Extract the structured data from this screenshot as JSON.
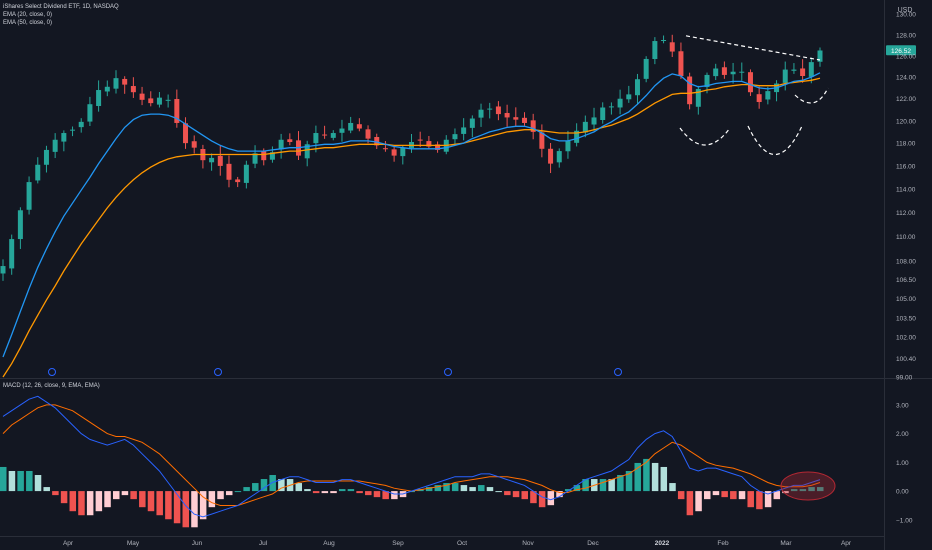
{
  "legend": {
    "symbol": "iShares Select Dividend ETF, 1D, NASDAQ",
    "ema20": "EMA (20, close, 0)",
    "ema50": "EMA (50, close, 0)",
    "macd": "MACD (12, 26, close, 9, EMA, EMA)"
  },
  "currency": "USD",
  "last_price": "126.52",
  "colors": {
    "background": "#131722",
    "up": "#26a69a",
    "down": "#ef5350",
    "ema20": "#2196f3",
    "ema50": "#ff9800",
    "macd_line": "#2962ff",
    "signal_line": "#ff6d00",
    "annotation": "#ffffff",
    "highlight": "#b22833"
  },
  "chart_data": [
    {
      "type": "candlestick",
      "title": "iShares Select Dividend ETF, 1D, NASDAQ",
      "x_tick_labels": [
        "Apr",
        "May",
        "Jun",
        "Jul",
        "Aug",
        "Sep",
        "Oct",
        "Nov",
        "Dec",
        "2022",
        "Feb",
        "Mar",
        "Apr"
      ],
      "y_tick_labels": [
        "130.00",
        "128.00",
        "126.00",
        "124.00",
        "122.00",
        "120.00",
        "118.00",
        "116.00",
        "114.00",
        "112.00",
        "110.00",
        "108.00",
        "106.50",
        "105.00",
        "103.50",
        "102.00",
        "100.40",
        "99.00"
      ],
      "ylim": [
        99,
        130.6
      ],
      "y_scale": "log",
      "grid": false,
      "approximate_closes": [
        107.6,
        109.8,
        112.2,
        114.6,
        116.1,
        117.4,
        118.3,
        118.9,
        119.2,
        119.9,
        121.5,
        122.8,
        123.1,
        123.9,
        123.3,
        122.6,
        121.9,
        121.6,
        122.1,
        121.9,
        119.8,
        118.0,
        117.6,
        116.5,
        116.7,
        116.0,
        114.8,
        114.6,
        116.1,
        117.1,
        116.5,
        117.2,
        118.3,
        118.1,
        116.9,
        117.9,
        118.9,
        118.7,
        118.9,
        119.3,
        119.8,
        119.3,
        118.4,
        117.8,
        117.5,
        116.9,
        117.6,
        118.1,
        118.3,
        117.7,
        117.4,
        118.3,
        118.8,
        119.4,
        120.2,
        121.0,
        121.1,
        120.6,
        120.3,
        120.1,
        119.8,
        119.0,
        117.5,
        116.2,
        117.3,
        118.2,
        119.1,
        119.9,
        120.3,
        121.2,
        121.3,
        122.0,
        122.4,
        123.8,
        125.7,
        127.4,
        127.5,
        126.4,
        124.1,
        121.5,
        122.9,
        124.2,
        124.8,
        124.2,
        124.5,
        124.5,
        122.6,
        121.7,
        122.7,
        123.4,
        124.7,
        124.7,
        124.1,
        125.4,
        126.5
      ],
      "ema20": [
        100.5,
        102.2,
        104.0,
        105.8,
        107.5,
        109.0,
        110.4,
        111.7,
        112.8,
        113.9,
        115.0,
        116.2,
        117.3,
        118.4,
        119.4,
        120.1,
        120.5,
        120.6,
        120.6,
        120.5,
        120.2,
        119.7,
        119.2,
        118.7,
        118.2,
        117.8,
        117.5,
        117.3,
        117.3,
        117.3,
        117.3,
        117.4,
        117.5,
        117.6,
        117.6,
        117.7,
        117.8,
        117.9,
        117.9,
        118.0,
        118.2,
        118.2,
        118.2,
        118.1,
        117.9,
        117.7,
        117.6,
        117.5,
        117.5,
        117.5,
        117.5,
        117.6,
        117.8,
        118.0,
        118.4,
        118.7,
        119.0,
        119.2,
        119.4,
        119.5,
        119.5,
        119.3,
        118.9,
        118.4,
        118.2,
        118.2,
        118.4,
        118.7,
        119.0,
        119.5,
        119.9,
        120.4,
        120.8,
        121.5,
        122.3,
        123.2,
        123.9,
        124.3,
        124.1,
        123.4,
        123.1,
        123.2,
        123.4,
        123.5,
        123.6,
        123.6,
        123.3,
        123.0,
        122.9,
        123.0,
        123.3,
        123.6,
        123.7,
        124.0,
        124.4
      ],
      "ema50": [
        99.0,
        100.0,
        101.2,
        102.5,
        103.7,
        104.9,
        106.0,
        107.2,
        108.3,
        109.4,
        110.4,
        111.4,
        112.4,
        113.3,
        114.1,
        114.8,
        115.4,
        115.9,
        116.3,
        116.6,
        116.8,
        116.9,
        117.0,
        117.0,
        117.0,
        117.0,
        117.0,
        117.0,
        117.0,
        117.0,
        117.0,
        117.1,
        117.2,
        117.3,
        117.3,
        117.4,
        117.5,
        117.6,
        117.6,
        117.7,
        117.8,
        117.9,
        117.9,
        117.9,
        117.9,
        117.8,
        117.8,
        117.8,
        117.8,
        117.8,
        117.8,
        117.8,
        117.9,
        118.0,
        118.2,
        118.4,
        118.6,
        118.8,
        119.0,
        119.1,
        119.2,
        119.2,
        119.1,
        119.0,
        118.9,
        118.9,
        118.9,
        119.0,
        119.2,
        119.4,
        119.6,
        119.9,
        120.2,
        120.6,
        121.1,
        121.6,
        122.0,
        122.4,
        122.5,
        122.5,
        122.6,
        122.8,
        122.9,
        123.1,
        123.2,
        123.3,
        123.3,
        123.2,
        123.2,
        123.2,
        123.4,
        123.5,
        123.6,
        123.7,
        123.9
      ]
    },
    {
      "type": "bar",
      "title": "MACD (12, 26, close, 9, EMA, EMA)",
      "series": [
        {
          "name": "MACD",
          "values": [
            2.6,
            2.8,
            3.0,
            3.2,
            3.3,
            3.1,
            2.9,
            2.6,
            2.3,
            2.0,
            1.8,
            1.7,
            1.6,
            1.7,
            1.8,
            1.6,
            1.3,
            1.0,
            0.7,
            0.3,
            -0.1,
            -0.5,
            -0.8,
            -0.9,
            -0.8,
            -0.7,
            -0.6,
            -0.5,
            -0.3,
            -0.1,
            0.1,
            0.3,
            0.4,
            0.5,
            0.5,
            0.4,
            0.3,
            0.3,
            0.3,
            0.4,
            0.4,
            0.3,
            0.2,
            0.1,
            0.0,
            -0.1,
            -0.1,
            0.0,
            0.1,
            0.2,
            0.3,
            0.4,
            0.5,
            0.5,
            0.5,
            0.6,
            0.6,
            0.5,
            0.4,
            0.3,
            0.2,
            0.0,
            -0.2,
            -0.3,
            -0.2,
            0.0,
            0.2,
            0.4,
            0.5,
            0.6,
            0.7,
            0.9,
            1.1,
            1.5,
            1.8,
            2.0,
            2.1,
            1.9,
            1.4,
            0.8,
            0.7,
            0.8,
            0.8,
            0.7,
            0.6,
            0.5,
            0.2,
            0.0,
            -0.1,
            0.0,
            0.1,
            0.2,
            0.2,
            0.3,
            0.4
          ]
        },
        {
          "name": "Signal",
          "values": [
            2.0,
            2.3,
            2.5,
            2.7,
            2.9,
            3.0,
            3.0,
            2.9,
            2.8,
            2.6,
            2.4,
            2.2,
            2.0,
            1.9,
            1.9,
            1.8,
            1.7,
            1.5,
            1.3,
            1.0,
            0.7,
            0.4,
            0.1,
            -0.2,
            -0.4,
            -0.5,
            -0.5,
            -0.5,
            -0.4,
            -0.3,
            -0.2,
            -0.1,
            0.1,
            0.2,
            0.3,
            0.35,
            0.35,
            0.35,
            0.35,
            0.35,
            0.35,
            0.35,
            0.3,
            0.25,
            0.2,
            0.1,
            0.05,
            0.0,
            0.05,
            0.1,
            0.15,
            0.2,
            0.3,
            0.35,
            0.4,
            0.45,
            0.5,
            0.5,
            0.5,
            0.45,
            0.4,
            0.3,
            0.2,
            0.05,
            -0.05,
            -0.05,
            0.05,
            0.1,
            0.2,
            0.3,
            0.4,
            0.5,
            0.6,
            0.8,
            1.0,
            1.3,
            1.5,
            1.7,
            1.6,
            1.4,
            1.2,
            1.0,
            0.9,
            0.85,
            0.8,
            0.7,
            0.6,
            0.45,
            0.3,
            0.2,
            0.15,
            0.15,
            0.15,
            0.2,
            0.3
          ]
        }
      ],
      "y_tick_labels": [
        "3.00",
        "2.00",
        "1.00",
        "0.00",
        "−1.00"
      ],
      "ylim": [
        -1.25,
        3.45
      ]
    }
  ]
}
